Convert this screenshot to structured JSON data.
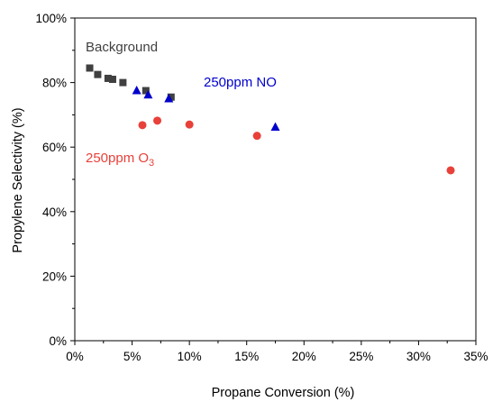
{
  "chart_data": {
    "type": "scatter",
    "title": "",
    "xlabel": "Propane Conversion (%)",
    "ylabel": "Propylene Selectivity (%)",
    "xlim": [
      0,
      35
    ],
    "ylim": [
      0,
      100
    ],
    "x_ticks": [
      0,
      5,
      10,
      15,
      20,
      25,
      30,
      35
    ],
    "y_ticks": [
      0,
      20,
      40,
      60,
      80,
      100
    ],
    "x_tick_labels": [
      "0%",
      "5%",
      "10%",
      "15%",
      "20%",
      "25%",
      "30%",
      "35%"
    ],
    "y_tick_labels": [
      "0%",
      "20%",
      "40%",
      "60%",
      "80%",
      "100%"
    ],
    "grid": false,
    "legend": "none",
    "series": [
      {
        "name": "Background",
        "marker": "square",
        "color": "#404040",
        "points": [
          {
            "x": 1.3,
            "y": 84.5
          },
          {
            "x": 2.0,
            "y": 82.5
          },
          {
            "x": 2.9,
            "y": 81.3
          },
          {
            "x": 3.3,
            "y": 81.0
          },
          {
            "x": 4.2,
            "y": 80.0
          },
          {
            "x": 6.2,
            "y": 77.5
          },
          {
            "x": 8.4,
            "y": 75.5
          }
        ]
      },
      {
        "name": "250ppm NO",
        "marker": "triangle",
        "color": "#0000CC",
        "points": [
          {
            "x": 5.4,
            "y": 77.5
          },
          {
            "x": 6.4,
            "y": 76.2
          },
          {
            "x": 8.2,
            "y": 75.0
          },
          {
            "x": 17.5,
            "y": 66.2
          }
        ]
      },
      {
        "name": "250ppm O",
        "name_subscript": "3",
        "marker": "circle",
        "color": "#E8413A",
        "points": [
          {
            "x": 5.9,
            "y": 66.8
          },
          {
            "x": 7.2,
            "y": 68.2
          },
          {
            "x": 10.0,
            "y": 67.0
          },
          {
            "x": 15.9,
            "y": 63.5
          },
          {
            "x": 32.8,
            "y": 52.8
          }
        ]
      }
    ]
  }
}
